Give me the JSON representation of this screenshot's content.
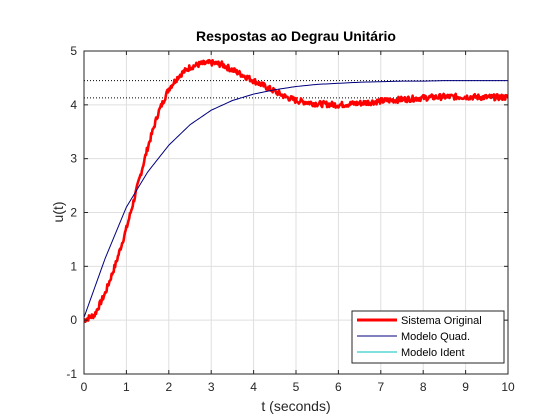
{
  "chart_data": {
    "type": "line",
    "title": "Respostas ao Degrau Unitário",
    "xlabel": "t (seconds)",
    "ylabel": "u(t)",
    "xlim": [
      0,
      10
    ],
    "ylim": [
      -1,
      5
    ],
    "xticks": [
      0,
      1,
      2,
      3,
      4,
      5,
      6,
      7,
      8,
      9,
      10
    ],
    "yticks": [
      -1,
      0,
      1,
      2,
      3,
      4,
      5
    ],
    "grid": true,
    "legend_position": "bottom-right",
    "reference_lines": [
      {
        "y": 4.45,
        "style": "dotted",
        "color": "#000000"
      },
      {
        "y": 4.13,
        "style": "dotted",
        "color": "#000000"
      }
    ],
    "series": [
      {
        "name": "Sistema Original",
        "color": "#ff0000",
        "style": "noisy-thick",
        "x": [
          0,
          0.25,
          0.5,
          0.75,
          1.0,
          1.25,
          1.5,
          1.75,
          2.0,
          2.25,
          2.5,
          2.75,
          3.0,
          3.25,
          3.5,
          3.75,
          4.0,
          4.25,
          4.5,
          4.75,
          5.0,
          5.5,
          6.0,
          6.5,
          7.0,
          7.5,
          8.0,
          8.5,
          9.0,
          9.5,
          10.0
        ],
        "y": [
          0.0,
          0.1,
          0.5,
          1.05,
          1.7,
          2.45,
          3.2,
          3.85,
          4.3,
          4.55,
          4.7,
          4.76,
          4.78,
          4.75,
          4.65,
          4.55,
          4.45,
          4.35,
          4.25,
          4.15,
          4.08,
          4.02,
          4.0,
          4.03,
          4.07,
          4.1,
          4.13,
          4.15,
          4.15,
          4.14,
          4.14
        ]
      },
      {
        "name": "Modelo Quad.",
        "color": "#00007f",
        "style": "thin",
        "x": [
          0,
          0.5,
          1.0,
          1.5,
          2.0,
          2.5,
          3.0,
          3.5,
          4.0,
          4.5,
          5.0,
          5.5,
          6.0,
          6.5,
          7.0,
          7.5,
          8.0,
          8.5,
          9.0,
          9.5,
          10.0
        ],
        "y": [
          0.05,
          1.15,
          2.1,
          2.75,
          3.25,
          3.63,
          3.9,
          4.08,
          4.2,
          4.28,
          4.34,
          4.38,
          4.4,
          4.42,
          4.43,
          4.44,
          4.44,
          4.45,
          4.45,
          4.45,
          4.45
        ]
      },
      {
        "name": "Modelo Ident",
        "color": "#00bfbf",
        "style": "thin",
        "x": [],
        "y": []
      }
    ]
  }
}
